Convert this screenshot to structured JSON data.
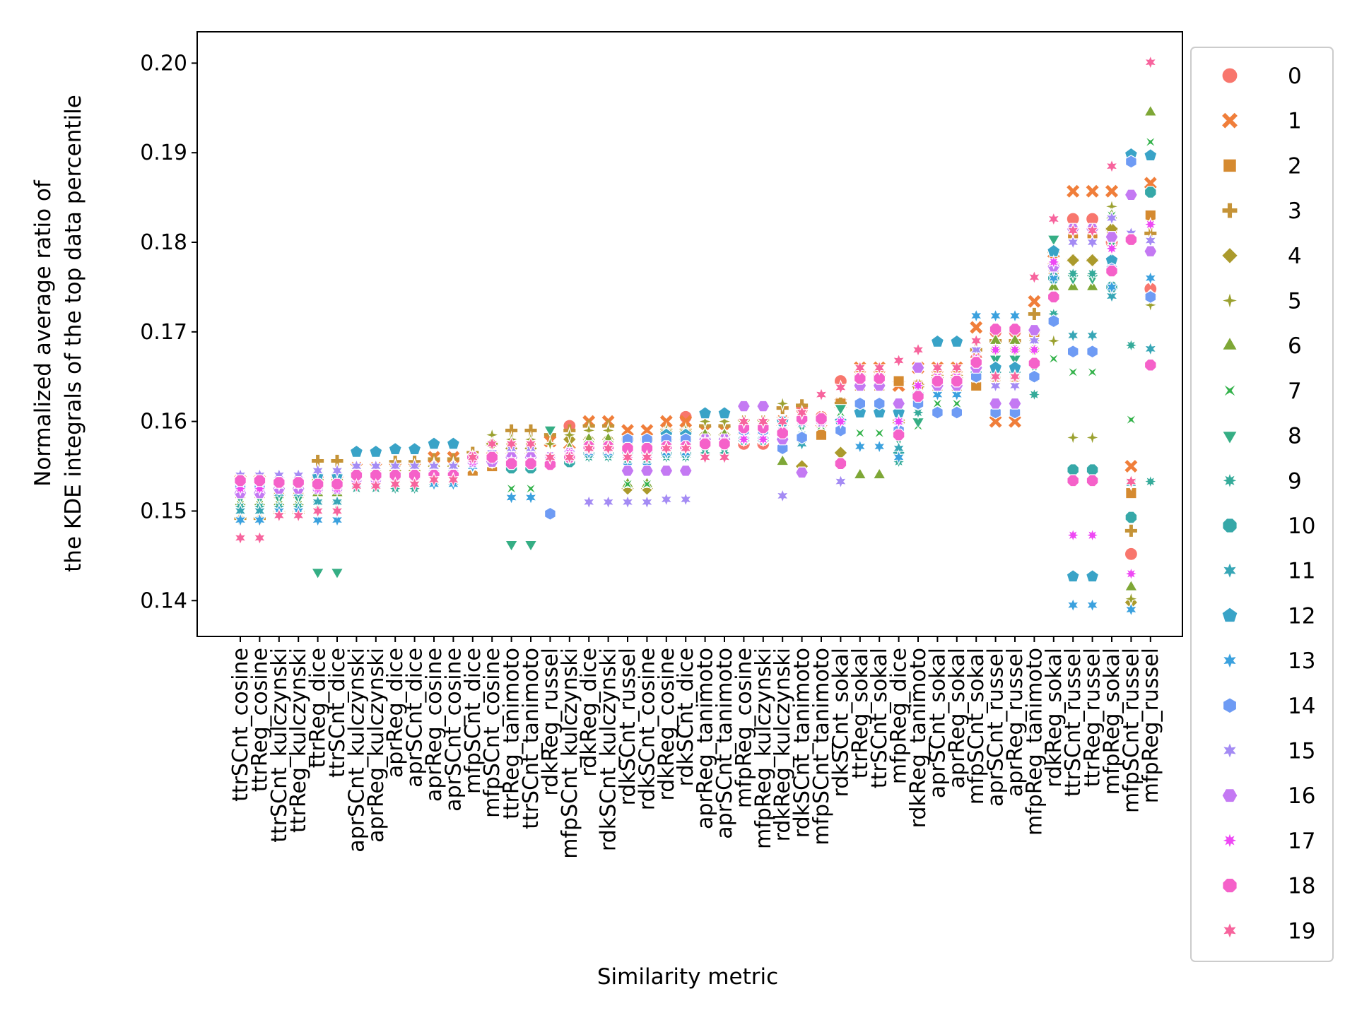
{
  "chart_data": {
    "type": "scatter",
    "title": "",
    "xlabel": "Similarity metric",
    "ylabel": [
      "Normalized average ratio of",
      "the KDE integrals of the top data percentile"
    ],
    "ylim": [
      0.136,
      0.2035
    ],
    "yticks": [
      "0.14",
      "0.15",
      "0.16",
      "0.17",
      "0.18",
      "0.19",
      "0.20"
    ],
    "grid": false,
    "legend_position": "outside-right",
    "categories": [
      "ttrSCnt_cosine",
      "ttrReg_cosine",
      "ttrSCnt_kulczynski",
      "ttrReg_kulczynski",
      "ttrReg_dice",
      "ttrSCnt_dice",
      "aprSCnt_kulczynski",
      "aprReg_kulczynski",
      "aprReg_dice",
      "aprSCnt_dice",
      "aprReg_cosine",
      "aprSCnt_cosine",
      "mfpSCnt_dice",
      "mfpSCnt_cosine",
      "ttrReg_tanimoto",
      "ttrSCnt_tanimoto",
      "rdkReg_russel",
      "mfpSCnt_kulczynski",
      "rdkReg_dice",
      "rdkSCnt_kulczynski",
      "rdkSCnt_russel",
      "rdkSCnt_cosine",
      "rdkReg_cosine",
      "rdkSCnt_dice",
      "aprReg_tanimoto",
      "aprSCnt_tanimoto",
      "mfpReg_cosine",
      "mfpReg_kulczynski",
      "rdkReg_kulczynski",
      "rdkSCnt_tanimoto",
      "mfpSCnt_tanimoto",
      "rdkSCnt_sokal",
      "ttrReg_sokal",
      "ttrSCnt_sokal",
      "mfpReg_dice",
      "rdkReg_tanimoto",
      "aprSCnt_sokal",
      "aprReg_sokal",
      "mfpSCnt_sokal",
      "aprSCnt_russel",
      "aprReg_russel",
      "mfpReg_tanimoto",
      "rdkReg_sokal",
      "ttrSCnt_russel",
      "ttrReg_russel",
      "mfpReg_sokal",
      "mfpSCnt_russel",
      "mfpReg_russel"
    ],
    "series": [
      {
        "name": "0",
        "color": "#f8766d",
        "marker": "circle"
      },
      {
        "name": "1",
        "color": "#f07e3a",
        "marker": "x"
      },
      {
        "name": "2",
        "color": "#d58a30",
        "marker": "square"
      },
      {
        "name": "3",
        "color": "#c59337",
        "marker": "plus"
      },
      {
        "name": "4",
        "color": "#ab9a2c",
        "marker": "diamond"
      },
      {
        "name": "5",
        "color": "#9ba130",
        "marker": "thin-diamond"
      },
      {
        "name": "6",
        "color": "#7ea736",
        "marker": "triangle-up"
      },
      {
        "name": "7",
        "color": "#33b24a",
        "marker": "bowtie"
      },
      {
        "name": "8",
        "color": "#35ae84",
        "marker": "triangle-down"
      },
      {
        "name": "9",
        "color": "#35ab9a",
        "marker": "star8"
      },
      {
        "name": "10",
        "color": "#36a8a8",
        "marker": "octagon"
      },
      {
        "name": "11",
        "color": "#37a6b6",
        "marker": "star6"
      },
      {
        "name": "12",
        "color": "#39a3c7",
        "marker": "pentagon"
      },
      {
        "name": "13",
        "color": "#3ba1de",
        "marker": "star6b"
      },
      {
        "name": "14",
        "color": "#6e9bf4",
        "marker": "hexagon"
      },
      {
        "name": "15",
        "color": "#a48bf4",
        "marker": "star6c"
      },
      {
        "name": "16",
        "color": "#c479f3",
        "marker": "hexagon-flat"
      },
      {
        "name": "17",
        "color": "#ee48f4",
        "marker": "star8b"
      },
      {
        "name": "18",
        "color": "#f561c9",
        "marker": "octagon"
      },
      {
        "name": "19",
        "color": "#f7649d",
        "marker": "star6d"
      }
    ],
    "values": [
      [
        0.1534,
        0.1534,
        0.1532,
        0.1532,
        0.1538,
        0.1538,
        0.1542,
        0.1542,
        0.154,
        0.154,
        0.154,
        0.154,
        0.1558,
        0.156,
        0.1555,
        0.1555,
        0.1553,
        0.1595,
        0.157,
        0.157,
        0.157,
        0.157,
        0.1572,
        0.1605,
        0.1575,
        0.1575,
        0.1575,
        0.1575,
        0.159,
        0.1614,
        0.1605,
        0.1645,
        0.1648,
        0.1648,
        0.16,
        0.164,
        0.1648,
        0.1648,
        0.167,
        0.17,
        0.17,
        0.17,
        0.176,
        0.1826,
        0.1826,
        0.18,
        0.1452,
        0.1748
      ],
      [
        0.1534,
        0.1534,
        0.1522,
        0.1522,
        0.1538,
        0.1538,
        0.1548,
        0.1548,
        0.1548,
        0.1548,
        0.156,
        0.156,
        0.1558,
        0.156,
        0.156,
        0.156,
        0.1578,
        0.1575,
        0.16,
        0.16,
        0.159,
        0.159,
        0.16,
        0.16,
        0.159,
        0.159,
        0.159,
        0.159,
        0.16,
        0.16,
        0.16,
        0.162,
        0.166,
        0.166,
        0.164,
        0.166,
        0.166,
        0.166,
        0.1705,
        0.16,
        0.16,
        0.1734,
        0.178,
        0.1857,
        0.1857,
        0.1857,
        0.155,
        0.1866
      ],
      [
        0.152,
        0.152,
        0.152,
        0.152,
        0.1525,
        0.1525,
        0.1535,
        0.1535,
        0.1535,
        0.1535,
        0.154,
        0.154,
        0.1545,
        0.155,
        0.157,
        0.157,
        0.156,
        0.156,
        0.1565,
        0.1565,
        0.157,
        0.157,
        0.157,
        0.157,
        0.158,
        0.158,
        0.1585,
        0.1585,
        0.1595,
        0.16,
        0.1585,
        0.162,
        0.164,
        0.164,
        0.1645,
        0.164,
        0.164,
        0.164,
        0.164,
        0.165,
        0.165,
        0.17,
        0.177,
        0.181,
        0.181,
        0.181,
        0.152,
        0.183
      ],
      [
        0.1492,
        0.1492,
        0.1498,
        0.1498,
        0.1556,
        0.1556,
        0.154,
        0.154,
        0.1555,
        0.1555,
        0.1558,
        0.1558,
        0.1565,
        0.1575,
        0.159,
        0.159,
        0.1585,
        0.159,
        0.1595,
        0.1595,
        0.158,
        0.158,
        0.159,
        0.159,
        0.1595,
        0.1595,
        0.16,
        0.16,
        0.1615,
        0.1618,
        0.16,
        0.162,
        0.165,
        0.165,
        0.16,
        0.164,
        0.165,
        0.165,
        0.168,
        0.169,
        0.169,
        0.172,
        0.179,
        0.178,
        0.178,
        0.1815,
        0.1478,
        0.181
      ],
      [
        0.153,
        0.153,
        0.153,
        0.153,
        0.1535,
        0.1535,
        0.1545,
        0.1545,
        0.1545,
        0.1545,
        0.155,
        0.155,
        0.1555,
        0.1575,
        0.157,
        0.157,
        0.156,
        0.158,
        0.158,
        0.158,
        0.1525,
        0.1525,
        0.158,
        0.158,
        0.1585,
        0.1585,
        0.1595,
        0.1595,
        0.16,
        0.155,
        0.16,
        0.1565,
        0.164,
        0.164,
        0.161,
        0.163,
        0.164,
        0.164,
        0.166,
        0.168,
        0.168,
        0.168,
        0.174,
        0.178,
        0.178,
        0.1815,
        0.1398,
        0.174
      ],
      [
        0.153,
        0.153,
        0.1525,
        0.1525,
        0.153,
        0.153,
        0.1545,
        0.1545,
        0.155,
        0.155,
        0.1552,
        0.1552,
        0.156,
        0.1585,
        0.158,
        0.158,
        0.1575,
        0.1585,
        0.159,
        0.159,
        0.1545,
        0.1545,
        0.159,
        0.159,
        0.16,
        0.16,
        0.16,
        0.16,
        0.162,
        0.158,
        0.1605,
        0.16,
        0.164,
        0.164,
        0.161,
        0.163,
        0.164,
        0.164,
        0.166,
        0.168,
        0.168,
        0.169,
        0.169,
        0.1582,
        0.1582,
        0.184,
        0.1402,
        0.173
      ],
      [
        0.151,
        0.151,
        0.151,
        0.151,
        0.152,
        0.152,
        0.153,
        0.153,
        0.1535,
        0.1535,
        0.154,
        0.154,
        0.155,
        0.156,
        0.155,
        0.155,
        0.156,
        0.157,
        0.158,
        0.158,
        0.153,
        0.153,
        0.158,
        0.158,
        0.1585,
        0.1585,
        0.1595,
        0.1595,
        0.1555,
        0.16,
        0.16,
        0.16,
        0.154,
        0.154,
        0.157,
        0.162,
        0.163,
        0.163,
        0.165,
        0.169,
        0.169,
        0.165,
        0.175,
        0.175,
        0.175,
        0.183,
        0.1415,
        0.1945
      ],
      [
        0.1505,
        0.1505,
        0.1505,
        0.1505,
        0.1505,
        0.1505,
        0.1528,
        0.1528,
        0.1532,
        0.1532,
        0.1535,
        0.1535,
        0.155,
        0.1555,
        0.1525,
        0.1525,
        0.156,
        0.156,
        0.1575,
        0.1575,
        0.153,
        0.153,
        0.1575,
        0.1575,
        0.158,
        0.158,
        0.159,
        0.159,
        0.16,
        0.16,
        0.1595,
        0.161,
        0.1587,
        0.1587,
        0.16,
        0.1595,
        0.162,
        0.162,
        0.165,
        0.166,
        0.166,
        0.165,
        0.167,
        0.1655,
        0.1655,
        0.183,
        0.1602,
        0.1912
      ],
      [
        0.1515,
        0.1515,
        0.1515,
        0.1515,
        0.1432,
        0.1432,
        0.153,
        0.153,
        0.153,
        0.153,
        0.1535,
        0.1535,
        0.155,
        0.156,
        0.1463,
        0.1463,
        0.1591,
        0.156,
        0.157,
        0.157,
        0.157,
        0.157,
        0.1575,
        0.1575,
        0.158,
        0.158,
        0.159,
        0.159,
        0.16,
        0.1595,
        0.16,
        0.1615,
        0.161,
        0.161,
        0.158,
        0.16,
        0.163,
        0.163,
        0.166,
        0.167,
        0.167,
        0.166,
        0.1804,
        0.176,
        0.176,
        0.18,
        0.189,
        0.176
      ],
      [
        0.1505,
        0.1505,
        0.1505,
        0.1505,
        0.151,
        0.151,
        0.1525,
        0.1525,
        0.1525,
        0.1525,
        0.153,
        0.153,
        0.155,
        0.1555,
        0.156,
        0.156,
        0.1555,
        0.156,
        0.156,
        0.156,
        0.1555,
        0.1555,
        0.156,
        0.156,
        0.1565,
        0.1565,
        0.158,
        0.158,
        0.158,
        0.1585,
        0.16,
        0.16,
        0.161,
        0.161,
        0.1555,
        0.161,
        0.165,
        0.165,
        0.165,
        0.165,
        0.165,
        0.163,
        0.172,
        0.1765,
        0.1765,
        0.175,
        0.1685,
        0.1533
      ],
      [
        0.1535,
        0.1535,
        0.1528,
        0.1528,
        0.1527,
        0.1527,
        0.154,
        0.154,
        0.154,
        0.154,
        0.1545,
        0.1545,
        0.1555,
        0.1555,
        0.1548,
        0.1548,
        0.1555,
        0.1555,
        0.1565,
        0.1565,
        0.1565,
        0.1565,
        0.1565,
        0.1565,
        0.1575,
        0.1575,
        0.158,
        0.158,
        0.1585,
        0.158,
        0.16,
        0.159,
        0.161,
        0.161,
        0.1565,
        0.162,
        0.164,
        0.164,
        0.1655,
        0.1655,
        0.1655,
        0.165,
        0.176,
        0.1546,
        0.1546,
        0.175,
        0.1493,
        0.1856
      ],
      [
        0.15,
        0.15,
        0.152,
        0.152,
        0.151,
        0.151,
        0.155,
        0.155,
        0.1545,
        0.1545,
        0.154,
        0.154,
        0.1555,
        0.156,
        0.1555,
        0.1555,
        0.1555,
        0.156,
        0.1565,
        0.1565,
        0.156,
        0.156,
        0.1565,
        0.1565,
        0.1575,
        0.1575,
        0.158,
        0.158,
        0.1575,
        0.1575,
        0.16,
        0.159,
        0.1612,
        0.1612,
        0.157,
        0.162,
        0.163,
        0.163,
        0.166,
        0.166,
        0.166,
        0.165,
        0.174,
        0.1696,
        0.1696,
        0.174,
        0.1531,
        0.1681
      ],
      [
        0.153,
        0.153,
        0.1535,
        0.1535,
        0.154,
        0.154,
        0.1566,
        0.1566,
        0.1569,
        0.1569,
        0.1575,
        0.1575,
        0.156,
        0.156,
        0.156,
        0.156,
        0.156,
        0.156,
        0.157,
        0.157,
        0.157,
        0.157,
        0.1585,
        0.1585,
        0.1609,
        0.1609,
        0.159,
        0.159,
        0.16,
        0.16,
        0.16,
        0.16,
        0.161,
        0.161,
        0.161,
        0.163,
        0.1689,
        0.1689,
        0.165,
        0.166,
        0.166,
        0.165,
        0.179,
        0.1427,
        0.1427,
        0.178,
        0.1898,
        0.1897
      ],
      [
        0.149,
        0.149,
        0.15,
        0.15,
        0.149,
        0.149,
        0.153,
        0.153,
        0.153,
        0.153,
        0.153,
        0.153,
        0.155,
        0.1555,
        0.1515,
        0.1515,
        0.1555,
        0.156,
        0.1565,
        0.1565,
        0.155,
        0.155,
        0.1565,
        0.1565,
        0.1575,
        0.1575,
        0.158,
        0.158,
        0.159,
        0.16,
        0.16,
        0.159,
        0.1572,
        0.1572,
        0.156,
        0.162,
        0.163,
        0.163,
        0.1718,
        0.1718,
        0.1718,
        0.165,
        0.176,
        0.1395,
        0.1395,
        0.175,
        0.139,
        0.176
      ],
      [
        0.1525,
        0.1525,
        0.1525,
        0.1525,
        0.153,
        0.153,
        0.154,
        0.154,
        0.154,
        0.154,
        0.1545,
        0.1545,
        0.1555,
        0.1555,
        0.156,
        0.156,
        0.1497,
        0.156,
        0.157,
        0.157,
        0.158,
        0.158,
        0.158,
        0.158,
        0.1575,
        0.1575,
        0.159,
        0.159,
        0.157,
        0.1582,
        0.16,
        0.159,
        0.162,
        0.162,
        0.159,
        0.162,
        0.161,
        0.161,
        0.165,
        0.161,
        0.161,
        0.165,
        0.1712,
        0.1678,
        0.1678,
        0.177,
        0.189,
        0.1739
      ],
      [
        0.154,
        0.154,
        0.154,
        0.154,
        0.1545,
        0.1545,
        0.155,
        0.155,
        0.155,
        0.155,
        0.155,
        0.155,
        0.156,
        0.1565,
        0.157,
        0.157,
        0.156,
        0.156,
        0.151,
        0.151,
        0.151,
        0.151,
        0.1513,
        0.1513,
        0.1575,
        0.1575,
        0.1595,
        0.1595,
        0.1517,
        0.16,
        0.16,
        0.1533,
        0.164,
        0.164,
        0.16,
        0.163,
        0.164,
        0.164,
        0.168,
        0.164,
        0.164,
        0.169,
        0.177,
        0.18,
        0.18,
        0.1827,
        0.181,
        0.1802
      ],
      [
        0.152,
        0.152,
        0.1525,
        0.1525,
        0.1525,
        0.1525,
        0.1535,
        0.1535,
        0.1535,
        0.1535,
        0.154,
        0.154,
        0.1555,
        0.1555,
        0.156,
        0.156,
        0.156,
        0.1565,
        0.157,
        0.157,
        0.1545,
        0.1545,
        0.1545,
        0.1545,
        0.158,
        0.158,
        0.1617,
        0.1617,
        0.158,
        0.1543,
        0.16,
        0.1552,
        0.164,
        0.164,
        0.162,
        0.166,
        0.164,
        0.164,
        0.166,
        0.162,
        0.162,
        0.1702,
        0.1773,
        0.1815,
        0.1815,
        0.1806,
        0.1853,
        0.179
      ],
      [
        0.1525,
        0.1525,
        0.153,
        0.153,
        0.1525,
        0.1525,
        0.1535,
        0.1535,
        0.1535,
        0.1535,
        0.154,
        0.154,
        0.1555,
        0.156,
        0.1555,
        0.1555,
        0.156,
        0.1565,
        0.157,
        0.157,
        0.156,
        0.156,
        0.157,
        0.157,
        0.1578,
        0.1578,
        0.158,
        0.158,
        0.159,
        0.16,
        0.16,
        0.16,
        0.165,
        0.165,
        0.16,
        0.164,
        0.165,
        0.165,
        0.167,
        0.168,
        0.168,
        0.168,
        0.1778,
        0.1473,
        0.1473,
        0.1793,
        0.143,
        0.182
      ],
      [
        0.1534,
        0.1534,
        0.1532,
        0.1532,
        0.153,
        0.153,
        0.154,
        0.154,
        0.154,
        0.154,
        0.154,
        0.154,
        0.156,
        0.156,
        0.1553,
        0.1553,
        0.1552,
        0.156,
        0.1572,
        0.1572,
        0.157,
        0.157,
        0.1572,
        0.1572,
        0.1575,
        0.1575,
        0.1593,
        0.1593,
        0.1587,
        0.1603,
        0.1603,
        0.1553,
        0.1648,
        0.1648,
        0.1585,
        0.1628,
        0.1645,
        0.1645,
        0.1666,
        0.1703,
        0.1703,
        0.1665,
        0.1739,
        0.1534,
        0.1534,
        0.1768,
        0.1803,
        0.1663
      ],
      [
        0.147,
        0.147,
        0.1495,
        0.1495,
        0.15,
        0.15,
        0.1528,
        0.1528,
        0.153,
        0.153,
        0.1535,
        0.1535,
        0.156,
        0.1575,
        0.1575,
        0.1575,
        0.156,
        0.156,
        0.157,
        0.157,
        0.156,
        0.156,
        0.157,
        0.157,
        0.156,
        0.156,
        0.16,
        0.16,
        0.16,
        0.161,
        0.163,
        0.1638,
        0.166,
        0.166,
        0.1668,
        0.168,
        0.166,
        0.166,
        0.169,
        0.165,
        0.165,
        0.1761,
        0.1826,
        0.1813,
        0.1813,
        0.1885,
        0.1533,
        0.2001
      ]
    ]
  }
}
